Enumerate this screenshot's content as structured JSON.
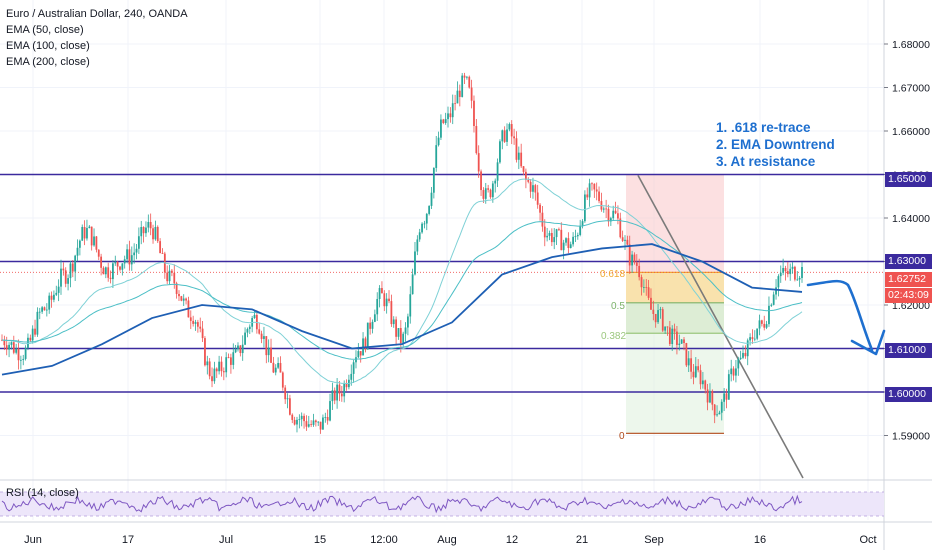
{
  "chart_title": "Euro / Australian Dollar, 240, OANDA",
  "indicators": [
    "EMA (50, close)",
    "EMA (100, close)",
    "EMA (200, close)"
  ],
  "rsi_label": "RSI (14, close)",
  "annotation_lines": [
    "1. .618 re-trace",
    "2. EMA Downtrend",
    "3. At resistance"
  ],
  "current_price": "1.62752",
  "countdown": "02:43:09",
  "colors": {
    "up": "#26a69a",
    "down": "#ef5350",
    "level": "#3b2a9e",
    "ema50": "#7fd1d6",
    "ema100": "#4cbfc6",
    "ema200": "#1e5fb4",
    "note": "#1e6fcf",
    "fib_618": "#f0a830",
    "fib_5": "#7cb26a",
    "fib_382": "#9bc77e"
  },
  "chart_data": {
    "type": "candlestick",
    "title": "Euro / Australian Dollar, 240, OANDA",
    "y_ticks": [
      "1.68000",
      "1.67000",
      "1.66000",
      "1.65000",
      "1.64000",
      "1.63000",
      "1.62000",
      "1.61000",
      "1.60000",
      "1.59000"
    ],
    "ylim": [
      1.585,
      1.687
    ],
    "x_ticks": [
      "Jun",
      "17",
      "Jul",
      "15",
      "12:00",
      "Aug",
      "12",
      "21",
      "Sep",
      "16",
      "Oct"
    ],
    "horizontal_levels": [
      1.65,
      1.63,
      1.61,
      1.6
    ],
    "highlighted_levels": [
      "1.65000",
      "1.63000",
      "1.61000",
      "1.60000"
    ],
    "fib_levels": [
      {
        "label": "0.618",
        "value": 1.6275
      },
      {
        "label": "0.5",
        "value": 1.6205
      },
      {
        "label": "0.382",
        "value": 1.6135
      },
      {
        "label": "0",
        "value": 1.5905
      }
    ],
    "ema_200_approx": [
      1.604,
      1.606,
      1.611,
      1.617,
      1.62,
      1.619,
      1.614,
      1.61,
      1.611,
      1.616,
      1.627,
      1.631,
      1.633,
      1.634,
      1.63,
      1.624,
      1.623
    ],
    "close_path": [
      1.612,
      1.609,
      1.619,
      1.627,
      1.637,
      1.628,
      1.631,
      1.638,
      1.626,
      1.618,
      1.604,
      1.608,
      1.617,
      1.605,
      1.594,
      1.592,
      1.6,
      1.61,
      1.622,
      1.612,
      1.64,
      1.662,
      1.671,
      1.645,
      1.66,
      1.648,
      1.636,
      1.634,
      1.646,
      1.641,
      1.63,
      1.618,
      1.612,
      1.604,
      1.596,
      1.607,
      1.615,
      1.627,
      1.628
    ],
    "projection": "down toward 1.61000"
  }
}
